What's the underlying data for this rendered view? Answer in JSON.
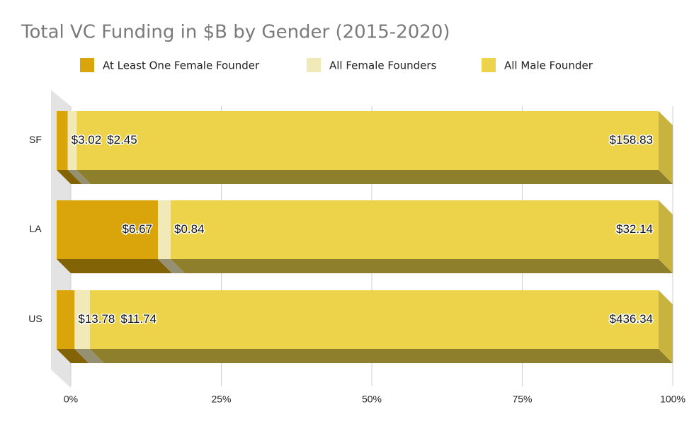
{
  "chart_data": {
    "type": "stacked-bar-100",
    "title": "Total VC Funding in $B by Gender  (2015-2020)",
    "categories": [
      "SF",
      "LA",
      "US"
    ],
    "series": [
      {
        "name": "At Least One Female Founder",
        "color": "#d9a50a",
        "values": [
          3.02,
          6.67,
          13.78
        ],
        "value_labels": [
          "$3.02",
          "$6.67",
          "$13.78"
        ]
      },
      {
        "name": "All Female Founders",
        "color": "#f2e9b8",
        "values": [
          2.45,
          0.84,
          11.74
        ],
        "value_labels": [
          "$2.45",
          "$0.84",
          "$11.74"
        ]
      },
      {
        "name": "All Male Founder",
        "color": "#ecd34a",
        "values": [
          158.83,
          32.14,
          436.34
        ],
        "value_labels": [
          "$158.83",
          "$32.14",
          "$436.34"
        ]
      }
    ],
    "xlim": [
      0,
      100
    ],
    "xticks": [
      {
        "value": 0,
        "label": "0%"
      },
      {
        "value": 25,
        "label": "25%"
      },
      {
        "value": 50,
        "label": "50%"
      },
      {
        "value": 75,
        "label": "75%"
      },
      {
        "value": 100,
        "label": "100%"
      }
    ],
    "grid": true
  }
}
